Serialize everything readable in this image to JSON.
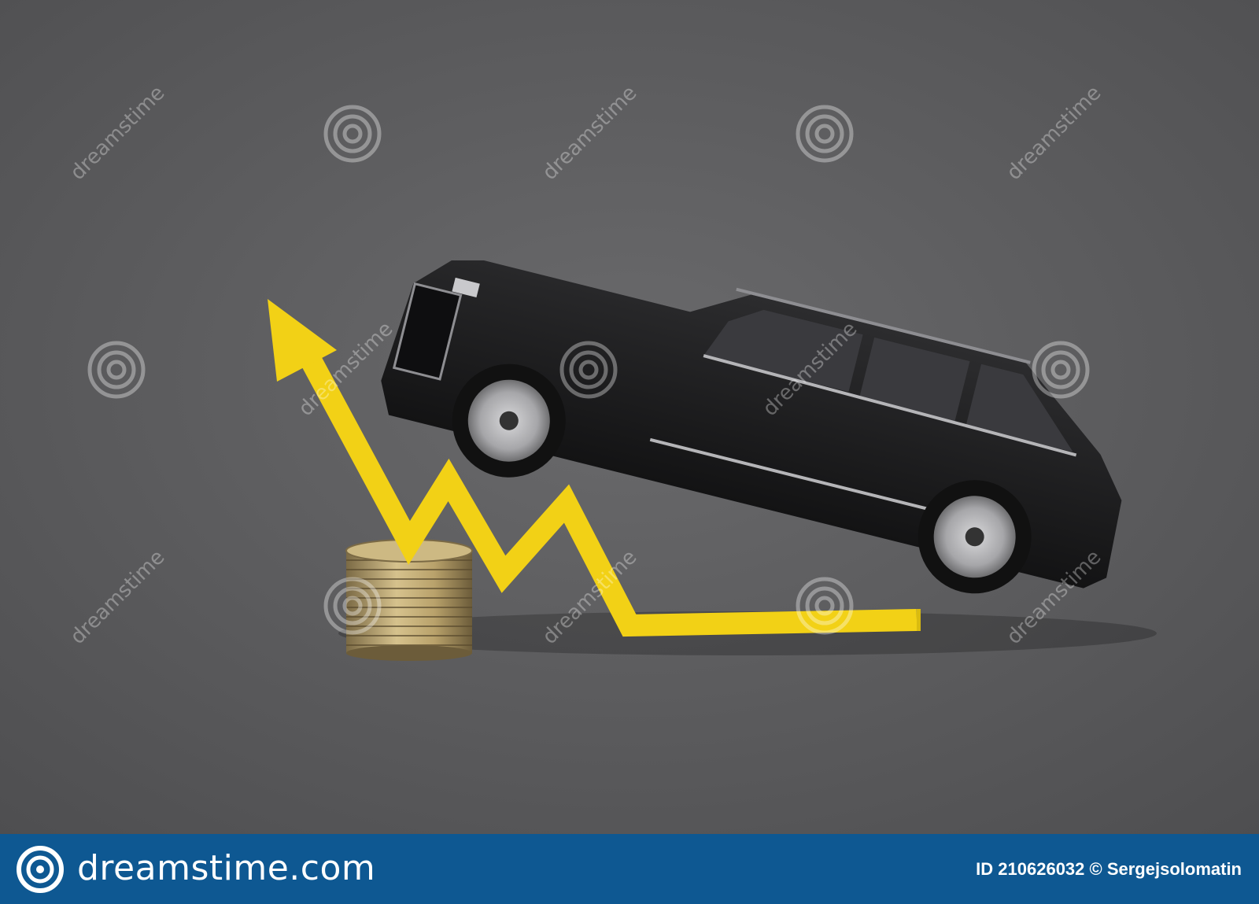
{
  "footer": {
    "brand": "dreamstime.com",
    "credit": "ID 210626032 © Sergejsolomatin"
  },
  "watermark": {
    "text": "dreamstime",
    "icon": "spiral-logo-icon"
  },
  "colors": {
    "background": "#5a5a5c",
    "arrow": "#f2d116",
    "car_body": "#1c1c1e",
    "footer": "#0e5892"
  },
  "scene": {
    "subjects": [
      "car-model",
      "yellow-arrow",
      "coin-stack"
    ]
  }
}
